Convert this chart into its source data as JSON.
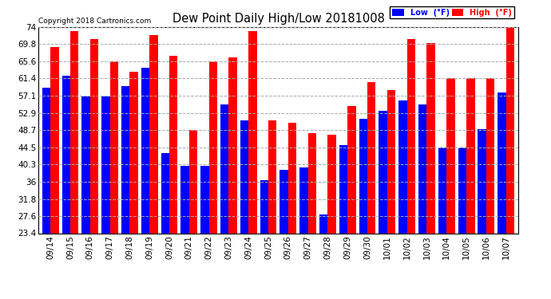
{
  "title": "Dew Point Daily High/Low 20181008",
  "copyright": "Copyright 2018 Cartronics.com",
  "dates": [
    "09/14",
    "09/15",
    "09/16",
    "09/17",
    "09/18",
    "09/19",
    "09/20",
    "09/21",
    "09/22",
    "09/23",
    "09/24",
    "09/25",
    "09/26",
    "09/27",
    "09/28",
    "09/29",
    "09/30",
    "10/01",
    "10/02",
    "10/03",
    "10/04",
    "10/05",
    "10/06",
    "10/07"
  ],
  "high": [
    69.0,
    73.0,
    71.0,
    65.6,
    63.0,
    72.0,
    67.0,
    48.7,
    65.6,
    66.5,
    73.0,
    51.0,
    50.5,
    48.0,
    47.5,
    54.5,
    60.5,
    58.5,
    71.0,
    70.0,
    61.4,
    61.4,
    61.4,
    74.0
  ],
  "low": [
    59.0,
    62.0,
    57.0,
    57.0,
    59.5,
    64.0,
    43.0,
    40.0,
    40.0,
    55.0,
    51.0,
    36.5,
    39.0,
    39.5,
    28.0,
    45.0,
    51.5,
    53.5,
    56.0,
    55.0,
    44.5,
    44.5,
    49.0,
    58.0
  ],
  "high_color": "#ff0000",
  "low_color": "#0000ff",
  "bg_color": "#ffffff",
  "plot_bg": "#ffffff",
  "grid_color": "#aaaaaa",
  "yticks": [
    23.4,
    27.6,
    31.8,
    36.0,
    40.3,
    44.5,
    48.7,
    52.9,
    57.1,
    61.4,
    65.6,
    69.8,
    74.0
  ],
  "ymin": 23.4,
  "ymax": 74.0,
  "bar_width": 0.42
}
